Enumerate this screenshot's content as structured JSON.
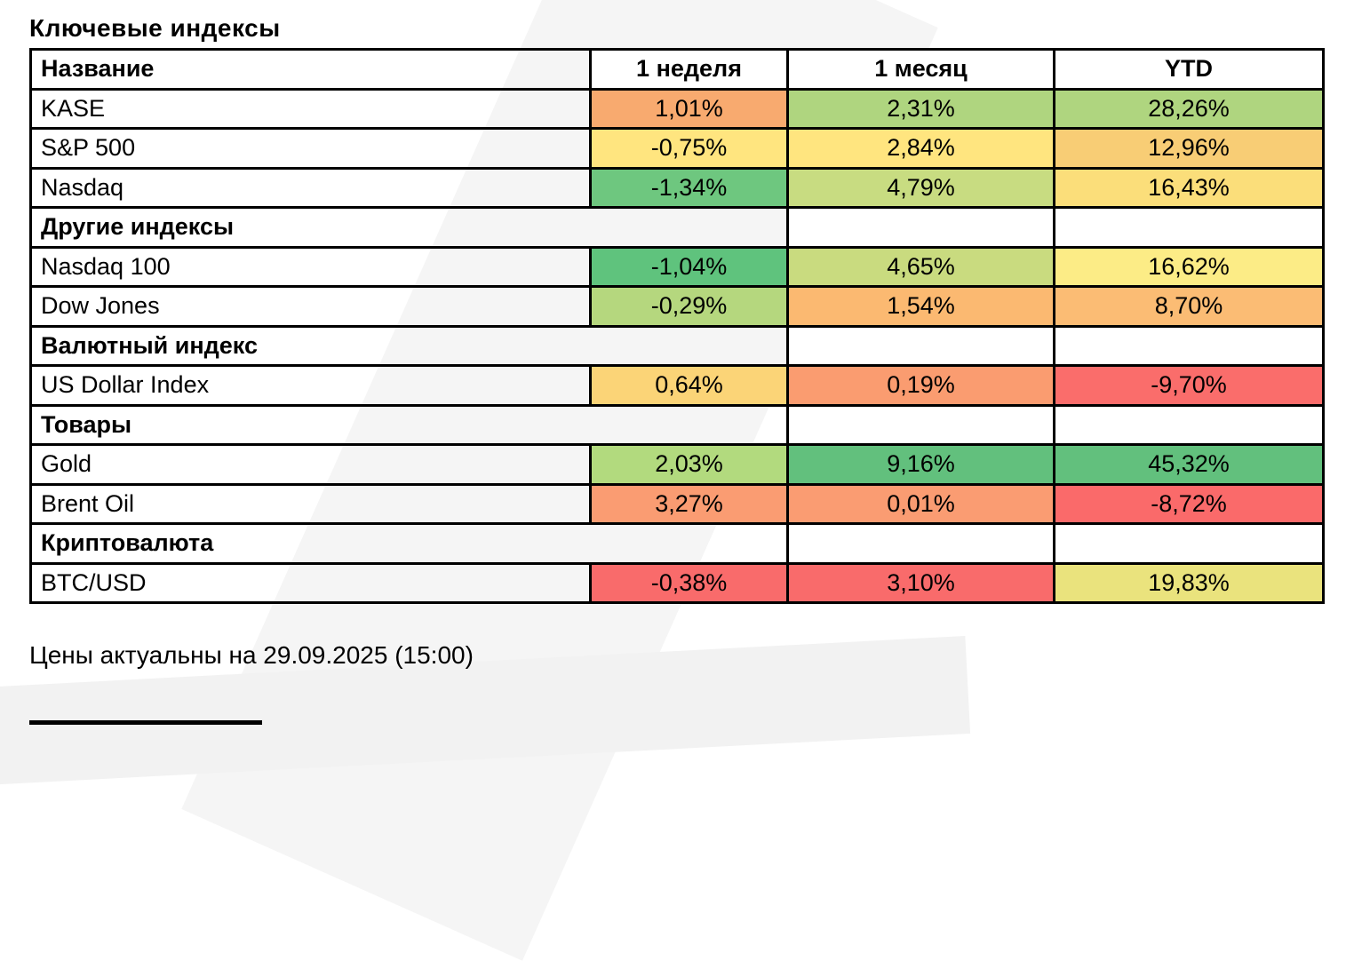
{
  "title": "Ключевые индексы",
  "footer": "Цены актуальны на 29.09.2025 (15:00)",
  "columns": [
    "Название",
    "1 неделя",
    "1 месяц",
    "YTD"
  ],
  "rows": [
    {
      "type": "data",
      "name": "KASE",
      "values": [
        "1,01%",
        "2,31%",
        "28,26%"
      ],
      "colors": [
        "#F8AA6F",
        "#AFD57F",
        "#AFD57F"
      ]
    },
    {
      "type": "data",
      "name": "S&P 500",
      "values": [
        "-0,75%",
        "2,84%",
        "12,96%"
      ],
      "colors": [
        "#FFE57F",
        "#FFE57F",
        "#F8CD75"
      ]
    },
    {
      "type": "data",
      "name": "Nasdaq",
      "values": [
        "-1,34%",
        "4,79%",
        "16,43%"
      ],
      "colors": [
        "#6EC77F",
        "#C8DC81",
        "#FBDE7A"
      ]
    },
    {
      "type": "section",
      "name": "Другие индексы"
    },
    {
      "type": "data",
      "name": "Nasdaq 100",
      "values": [
        "-1,04%",
        "4,65%",
        "16,62%"
      ],
      "colors": [
        "#5FC37D",
        "#C9DB7F",
        "#FCEC86"
      ]
    },
    {
      "type": "data",
      "name": "Dow Jones",
      "values": [
        "-0,29%",
        "1,54%",
        "8,70%"
      ],
      "colors": [
        "#B5D77E",
        "#FBB971",
        "#FBBC74"
      ]
    },
    {
      "type": "section",
      "name": "Валютный индекс"
    },
    {
      "type": "data",
      "name": "US Dollar Index",
      "values": [
        "0,64%",
        "0,19%",
        "-9,70%"
      ],
      "colors": [
        "#FBD477",
        "#FA9C70",
        "#FA6D6B"
      ]
    },
    {
      "type": "section",
      "name": "Товары"
    },
    {
      "type": "data",
      "name": "Gold",
      "values": [
        "2,03%",
        "9,16%",
        "45,32%"
      ],
      "colors": [
        "#B2DA7E",
        "#62C07D",
        "#62C07D"
      ]
    },
    {
      "type": "data",
      "name": "Brent Oil",
      "values": [
        "3,27%",
        "0,01%",
        "-8,72%"
      ],
      "colors": [
        "#FA9C72",
        "#FA9C72",
        "#FA6A6A"
      ]
    },
    {
      "type": "section",
      "name": "Криптовалюта"
    },
    {
      "type": "data",
      "name": "BTC/USD",
      "values": [
        "-0,38%",
        "3,10%",
        "19,83%"
      ],
      "colors": [
        "#F96B6B",
        "#F96B6B",
        "#EAE37D"
      ]
    }
  ]
}
